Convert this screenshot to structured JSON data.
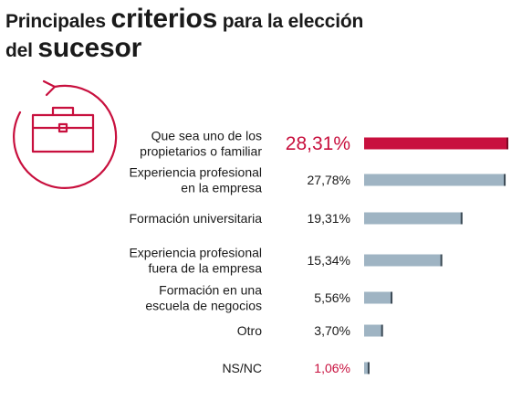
{
  "header": {
    "title_part1": "Principales ",
    "title_emph1": "criterios",
    "title_part2": " para la elección",
    "title_part3": "del ",
    "title_emph2": "sucesor"
  },
  "icon": {
    "name": "briefcase-refresh-icon",
    "color": "#c8103e"
  },
  "colors": {
    "highlight": "#c8103e",
    "bar": "#9fb4c3",
    "bar_end": "#3c4a55",
    "accent_text": "#c8103e"
  },
  "chart_data": {
    "type": "bar",
    "orientation": "horizontal",
    "categories": [
      [
        "Que sea uno de los",
        "propietarios o familiar"
      ],
      [
        "Experiencia profesional",
        "en la empresa"
      ],
      [
        "Formación universitaria"
      ],
      [
        "Experiencia profesional",
        "fuera de la empresa"
      ],
      [
        "Formación en una",
        "escuela de negocios"
      ],
      [
        "Otro"
      ],
      [
        "NS/NC"
      ]
    ],
    "values": [
      28.31,
      27.78,
      19.31,
      15.34,
      5.56,
      3.7,
      1.06
    ],
    "value_labels": [
      "28,31%",
      "27,78%",
      "19,31%",
      "15,34%",
      "5,56%",
      "3,70%",
      "1,06%"
    ],
    "highlight_index": 0,
    "accent_label_indices": [
      0,
      6
    ],
    "xlim": [
      0,
      28.31
    ]
  }
}
